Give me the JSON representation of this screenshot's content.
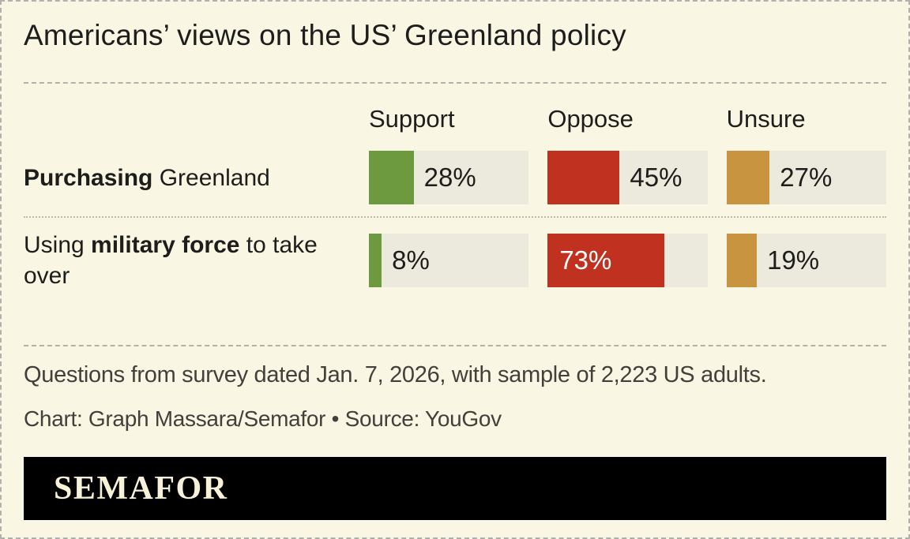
{
  "header": {
    "title": "Americans’ views on the US’ Greenland policy"
  },
  "columns": [
    {
      "label": "Support",
      "color": "#6d9a3e"
    },
    {
      "label": "Oppose",
      "color": "#c0321f"
    },
    {
      "label": "Unsure",
      "color": "#c99440"
    }
  ],
  "rows": [
    {
      "label_parts": [
        {
          "text": "Purchasing",
          "bold": true
        },
        {
          "text": " Greenland",
          "bold": false
        }
      ],
      "bars": [
        {
          "column": "Support",
          "value": 28,
          "display": "28%",
          "label_position": "after"
        },
        {
          "column": "Oppose",
          "value": 45,
          "display": "45%",
          "label_position": "after"
        },
        {
          "column": "Unsure",
          "value": 27,
          "display": "27%",
          "label_position": "after"
        }
      ]
    },
    {
      "label_parts": [
        {
          "text": "Using ",
          "bold": false
        },
        {
          "text": "military force",
          "bold": true
        },
        {
          "text": " to take over",
          "bold": false
        }
      ],
      "bars": [
        {
          "column": "Support",
          "value": 8,
          "display": "8%",
          "label_position": "after"
        },
        {
          "column": "Oppose",
          "value": 73,
          "display": "73%",
          "label_position": "inside"
        },
        {
          "column": "Unsure",
          "value": 19,
          "display": "19%",
          "label_position": "after"
        }
      ]
    }
  ],
  "chart_data": {
    "type": "bar",
    "orientation": "horizontal",
    "title": "Americans’ views on the US’ Greenland policy",
    "categories": [
      "Purchasing Greenland",
      "Using military force to take over"
    ],
    "series": [
      {
        "name": "Support",
        "values": [
          28,
          8
        ],
        "color": "#6d9a3e"
      },
      {
        "name": "Oppose",
        "values": [
          45,
          73
        ],
        "color": "#c0321f"
      },
      {
        "name": "Unsure",
        "values": [
          27,
          19
        ],
        "color": "#c99440"
      }
    ],
    "value_suffix": "%",
    "xlim": [
      0,
      100
    ],
    "grid": false,
    "legend_position": "column-headers-top"
  },
  "footer": {
    "note": "Questions from survey dated Jan. 7, 2026, with sample of 2,223 US adults.",
    "credit": "Chart: Graph Massara/Semafor • Source: YouGov"
  },
  "logo": {
    "text": "SEMAFOR"
  },
  "colors": {
    "background": "#f9f7e3",
    "bar_track": "#eceadd",
    "support": "#6d9a3e",
    "oppose": "#c0321f",
    "unsure": "#c99440",
    "text": "#1d1d1b",
    "footer_text": "#41403a",
    "divider": "#b2b2ac",
    "logo_background": "#000000",
    "logo_text": "#f6f1d8",
    "inside_bar_label": "#ffffff"
  }
}
